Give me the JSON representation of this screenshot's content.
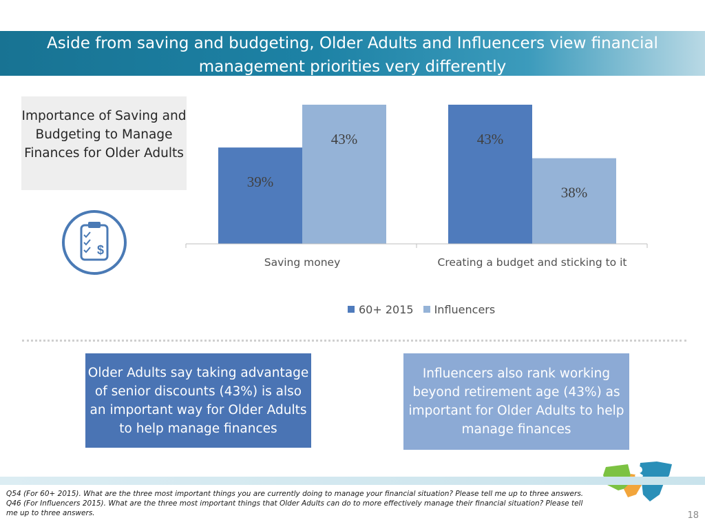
{
  "title": "Aside from saving and budgeting, Older Adults and Influencers view financial management priorities very differently",
  "left_box": {
    "text": "Importance of Saving and Budgeting to Manage Finances for Older Adults"
  },
  "icon": "clipboard-checklist-dollar-icon",
  "chart_data": {
    "type": "bar",
    "categories": [
      "Saving money",
      "Creating a budget and sticking to it"
    ],
    "series": [
      {
        "name": "60+ 2015",
        "values": [
          39,
          43
        ],
        "labels": [
          "39%",
          "43%"
        ],
        "color": "#4f7bbc"
      },
      {
        "name": "Influencers",
        "values": [
          43,
          38
        ],
        "labels": [
          "43%",
          "38%"
        ],
        "color": "#95b3d7"
      }
    ],
    "legend_position": "bottom",
    "grid": false
  },
  "callouts": {
    "left": "Older Adults say taking advantage of senior discounts (43%) is also an important way for Older Adults to help manage finances",
    "right": "Influencers also rank working beyond retirement age (43%) as important for Older Adults to help manage finances"
  },
  "footnote": {
    "line1": "Q54 (For 60+ 2015). What are the three most important things you are currently doing to manage your financial situation? Please tell me up to three answers.",
    "line2": "Q46 (For Influencers 2015). What are the three most important things that Older Adults can do to more effectively manage their financial situation? Please tell me up to three answers."
  },
  "page_number": "18",
  "colors": {
    "title_band": "#187393",
    "accent_dark": "#4a74b4",
    "accent_light": "#8caad5"
  }
}
